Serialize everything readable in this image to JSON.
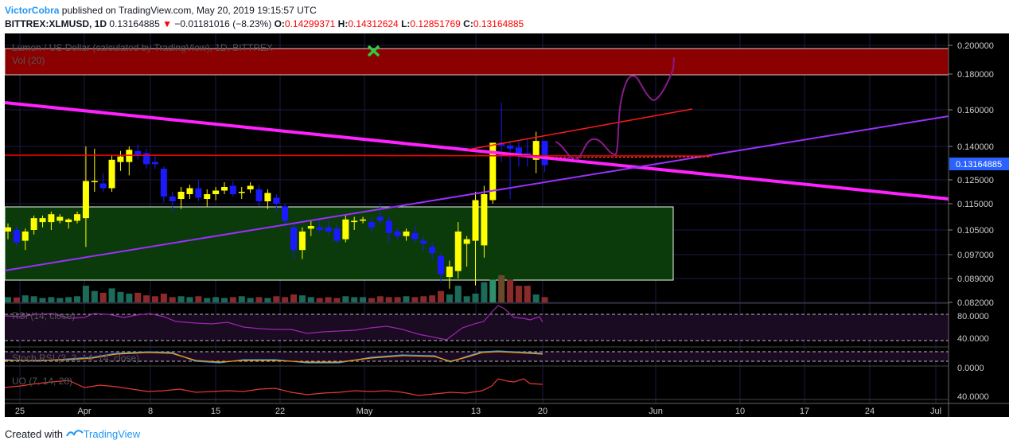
{
  "header": {
    "author": "VictorCobra",
    "published_text": " published on TradingView.com, May 20, 2019 19:15:57 UTC",
    "symbol_line": "BITTREX:XLMUSD, 1D",
    "last_value": "0.13164885",
    "down_arrow": "▼",
    "change": "−0.01181016 (−8.23%)",
    "o_label": "O:",
    "o_value": "0.14299371",
    "h_label": "H:",
    "h_value": "0.14312624",
    "l_label": "L:",
    "l_value": "0.12851769",
    "c_label": "C:",
    "c_value": "0.13164885"
  },
  "chart_overlay": {
    "series_title": "Lumen / US Dollar (calculated by TradingView), 1D, BITTREX",
    "vol_label": "Vol (20)",
    "rsi_label": "RSI (14, close)",
    "stoch_label": "Stoch RSI (3, 3, 14, 14, close)",
    "uo_label": "UO (7, 14, 28)",
    "price_tag": "0.13164885"
  },
  "chart_data": {
    "type": "candlestick",
    "price_axis_ticks": [
      "0.200000",
      "0.180000",
      "0.160000",
      "0.140000",
      "0.125000",
      "0.115000",
      "0.105000",
      "0.097000",
      "0.089000",
      "0.082000"
    ],
    "rsi_axis_ticks": [
      "80.0000",
      "40.0000"
    ],
    "stoch_axis_ticks": [
      "0.0000"
    ],
    "uo_axis_ticks": [
      "40.0000"
    ],
    "x_tick_labels": [
      "25",
      "Apr",
      "8",
      "15",
      "22",
      "May",
      "13",
      "20",
      "Jun",
      "10",
      "17",
      "24",
      "Jul"
    ],
    "candles": [
      {
        "o": 0.1045,
        "h": 0.1075,
        "l": 0.102,
        "c": 0.106
      },
      {
        "o": 0.105,
        "h": 0.1065,
        "l": 0.0995,
        "c": 0.101
      },
      {
        "o": 0.1015,
        "h": 0.1055,
        "l": 0.0985,
        "c": 0.1045
      },
      {
        "o": 0.105,
        "h": 0.1105,
        "l": 0.1035,
        "c": 0.1095
      },
      {
        "o": 0.108,
        "h": 0.1105,
        "l": 0.106,
        "c": 0.1095
      },
      {
        "o": 0.108,
        "h": 0.112,
        "l": 0.105,
        "c": 0.111
      },
      {
        "o": 0.1085,
        "h": 0.111,
        "l": 0.1075,
        "c": 0.11
      },
      {
        "o": 0.108,
        "h": 0.1095,
        "l": 0.1055,
        "c": 0.109
      },
      {
        "o": 0.1085,
        "h": 0.112,
        "l": 0.1075,
        "c": 0.111
      },
      {
        "o": 0.1095,
        "h": 0.14,
        "l": 0.0995,
        "c": 0.1245
      },
      {
        "o": 0.1245,
        "h": 0.139,
        "l": 0.12,
        "c": 0.1245
      },
      {
        "o": 0.1235,
        "h": 0.128,
        "l": 0.12,
        "c": 0.1215
      },
      {
        "o": 0.1215,
        "h": 0.136,
        "l": 0.12,
        "c": 0.134
      },
      {
        "o": 0.133,
        "h": 0.138,
        "l": 0.129,
        "c": 0.1355
      },
      {
        "o": 0.133,
        "h": 0.14,
        "l": 0.127,
        "c": 0.1385
      },
      {
        "o": 0.138,
        "h": 0.141,
        "l": 0.134,
        "c": 0.136
      },
      {
        "o": 0.137,
        "h": 0.139,
        "l": 0.13,
        "c": 0.132
      },
      {
        "o": 0.133,
        "h": 0.136,
        "l": 0.13,
        "c": 0.132
      },
      {
        "o": 0.13,
        "h": 0.131,
        "l": 0.1155,
        "c": 0.118
      },
      {
        "o": 0.118,
        "h": 0.12,
        "l": 0.112,
        "c": 0.116
      },
      {
        "o": 0.117,
        "h": 0.122,
        "l": 0.113,
        "c": 0.12
      },
      {
        "o": 0.119,
        "h": 0.123,
        "l": 0.117,
        "c": 0.1215
      },
      {
        "o": 0.1215,
        "h": 0.125,
        "l": 0.116,
        "c": 0.1175
      },
      {
        "o": 0.117,
        "h": 0.121,
        "l": 0.114,
        "c": 0.119
      },
      {
        "o": 0.119,
        "h": 0.122,
        "l": 0.1165,
        "c": 0.1205
      },
      {
        "o": 0.1205,
        "h": 0.124,
        "l": 0.119,
        "c": 0.122
      },
      {
        "o": 0.1225,
        "h": 0.1245,
        "l": 0.118,
        "c": 0.119
      },
      {
        "o": 0.1195,
        "h": 0.122,
        "l": 0.117,
        "c": 0.12
      },
      {
        "o": 0.121,
        "h": 0.124,
        "l": 0.1195,
        "c": 0.1225
      },
      {
        "o": 0.121,
        "h": 0.123,
        "l": 0.114,
        "c": 0.116
      },
      {
        "o": 0.116,
        "h": 0.121,
        "l": 0.113,
        "c": 0.1195
      },
      {
        "o": 0.1175,
        "h": 0.119,
        "l": 0.112,
        "c": 0.115
      },
      {
        "o": 0.114,
        "h": 0.115,
        "l": 0.106,
        "c": 0.1085
      },
      {
        "o": 0.106,
        "h": 0.1075,
        "l": 0.0955,
        "c": 0.0985
      },
      {
        "o": 0.0985,
        "h": 0.106,
        "l": 0.0955,
        "c": 0.1045
      },
      {
        "o": 0.1055,
        "h": 0.1085,
        "l": 0.103,
        "c": 0.1065
      },
      {
        "o": 0.106,
        "h": 0.109,
        "l": 0.104,
        "c": 0.105
      },
      {
        "o": 0.106,
        "h": 0.1085,
        "l": 0.1035,
        "c": 0.1045
      },
      {
        "o": 0.1055,
        "h": 0.107,
        "l": 0.1005,
        "c": 0.1015
      },
      {
        "o": 0.102,
        "h": 0.1105,
        "l": 0.101,
        "c": 0.109
      },
      {
        "o": 0.108,
        "h": 0.11,
        "l": 0.105,
        "c": 0.1085
      },
      {
        "o": 0.1085,
        "h": 0.11,
        "l": 0.1075,
        "c": 0.109
      },
      {
        "o": 0.108,
        "h": 0.1095,
        "l": 0.104,
        "c": 0.106
      },
      {
        "o": 0.11,
        "h": 0.115,
        "l": 0.1075,
        "c": 0.1085
      },
      {
        "o": 0.1085,
        "h": 0.11,
        "l": 0.101,
        "c": 0.104
      },
      {
        "o": 0.1045,
        "h": 0.106,
        "l": 0.102,
        "c": 0.103
      },
      {
        "o": 0.103,
        "h": 0.1055,
        "l": 0.1015,
        "c": 0.1045
      },
      {
        "o": 0.104,
        "h": 0.1065,
        "l": 0.101,
        "c": 0.102
      },
      {
        "o": 0.1015,
        "h": 0.103,
        "l": 0.0985,
        "c": 0.1005
      },
      {
        "o": 0.0995,
        "h": 0.101,
        "l": 0.0955,
        "c": 0.0975
      },
      {
        "o": 0.0965,
        "h": 0.0975,
        "l": 0.088,
        "c": 0.0905
      },
      {
        "o": 0.0895,
        "h": 0.095,
        "l": 0.086,
        "c": 0.093
      },
      {
        "o": 0.0915,
        "h": 0.108,
        "l": 0.089,
        "c": 0.1045
      },
      {
        "o": 0.1005,
        "h": 0.103,
        "l": 0.093,
        "c": 0.102
      },
      {
        "o": 0.1015,
        "h": 0.12,
        "l": 0.087,
        "c": 0.1165
      },
      {
        "o": 0.1,
        "h": 0.1225,
        "l": 0.096,
        "c": 0.119
      },
      {
        "o": 0.1165,
        "h": 0.142,
        "l": 0.115,
        "c": 0.142
      },
      {
        "o": 0.142,
        "h": 0.164,
        "l": 0.133,
        "c": 0.1405
      },
      {
        "o": 0.1405,
        "h": 0.143,
        "l": 0.117,
        "c": 0.139
      },
      {
        "o": 0.1395,
        "h": 0.143,
        "l": 0.131,
        "c": 0.136
      },
      {
        "o": 0.137,
        "h": 0.144,
        "l": 0.131,
        "c": 0.136
      },
      {
        "o": 0.134,
        "h": 0.148,
        "l": 0.128,
        "c": 0.143
      },
      {
        "o": 0.143,
        "h": 0.1431,
        "l": 0.1285,
        "c": 0.1316
      }
    ],
    "volume": [
      0.3,
      0.28,
      0.4,
      0.35,
      0.25,
      0.3,
      0.25,
      0.3,
      0.35,
      0.95,
      0.65,
      0.55,
      0.8,
      0.6,
      0.5,
      0.55,
      0.4,
      0.35,
      0.5,
      0.3,
      0.35,
      0.3,
      0.35,
      0.25,
      0.3,
      0.25,
      0.3,
      0.35,
      0.25,
      0.3,
      0.25,
      0.35,
      0.3,
      0.45,
      0.4,
      0.3,
      0.25,
      0.3,
      0.25,
      0.35,
      0.3,
      0.3,
      0.25,
      0.35,
      0.3,
      0.3,
      0.35,
      0.3,
      0.35,
      0.4,
      0.65,
      0.45,
      0.95,
      0.35,
      0.5,
      1.15,
      1.3,
      1.55,
      1.3,
      0.95,
      0.95,
      0.45,
      0.3
    ]
  }
}
